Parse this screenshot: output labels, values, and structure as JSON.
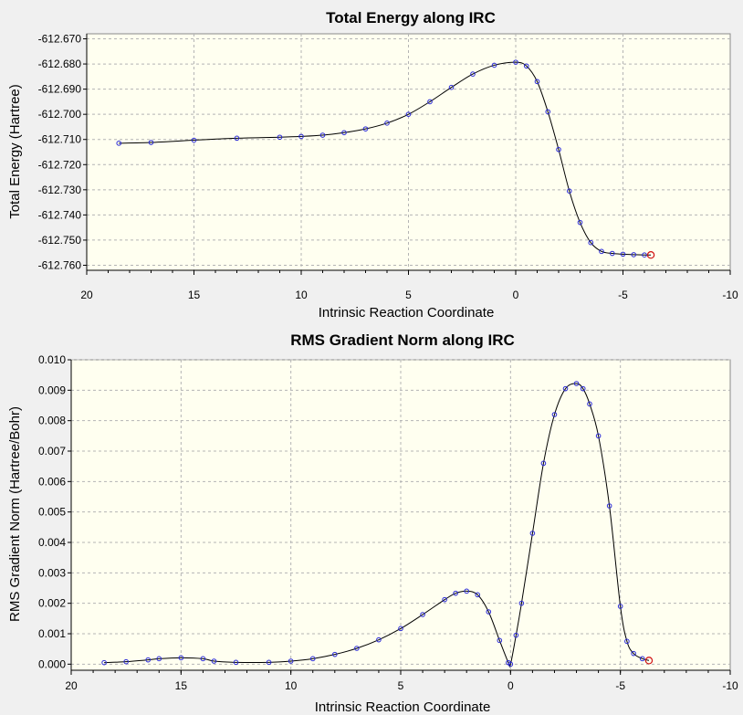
{
  "chart_data": [
    {
      "type": "scatter",
      "title": "Total Energy along IRC",
      "xlabel": "Intrinsic Reaction Coordinate",
      "ylabel": "Total Energy (Hartree)",
      "xlim": [
        20,
        -10
      ],
      "ylim": [
        -612.762,
        -612.668
      ],
      "x_ticks": [
        20,
        15,
        10,
        5,
        0,
        -5,
        -10
      ],
      "y_ticks": [
        -612.67,
        -612.68,
        -612.69,
        -612.7,
        -612.71,
        -612.72,
        -612.73,
        -612.74,
        -612.75,
        -612.76
      ],
      "x_tick_labels": [
        "20",
        "15",
        "10",
        "5",
        "0",
        "-5",
        "-10"
      ],
      "y_tick_labels": [
        "-612.670",
        "-612.680",
        "-612.690",
        "-612.700",
        "-612.710",
        "-612.720",
        "-612.730",
        "-612.740",
        "-612.750",
        "-612.760"
      ],
      "grid": true,
      "highlight_last_point": true,
      "curve_colors": {
        "line": "#000000",
        "marker": "#2a2ad6",
        "last_marker": "#d01010",
        "plot_bg": "#fffff0"
      },
      "points": [
        [
          18.5,
          -612.7115
        ],
        [
          17.0,
          -612.7112
        ],
        [
          15.0,
          -612.7103
        ],
        [
          13.0,
          -612.7095
        ],
        [
          11.0,
          -612.7091
        ],
        [
          10.0,
          -612.7088
        ],
        [
          9.0,
          -612.7083
        ],
        [
          8.0,
          -612.7073
        ],
        [
          7.0,
          -612.7058
        ],
        [
          6.0,
          -612.7035
        ],
        [
          5.0,
          -612.7
        ],
        [
          4.0,
          -612.695
        ],
        [
          3.0,
          -612.6893
        ],
        [
          2.0,
          -612.684
        ],
        [
          1.0,
          -612.6805
        ],
        [
          0.0,
          -612.6793
        ],
        [
          -0.5,
          -612.6808
        ],
        [
          -1.0,
          -612.687
        ],
        [
          -1.5,
          -612.699
        ],
        [
          -2.0,
          -612.714
        ],
        [
          -2.5,
          -612.7305
        ],
        [
          -3.0,
          -612.743
        ],
        [
          -3.5,
          -612.751
        ],
        [
          -4.0,
          -612.7545
        ],
        [
          -4.5,
          -612.7553
        ],
        [
          -5.0,
          -612.7556
        ],
        [
          -5.5,
          -612.7558
        ],
        [
          -6.0,
          -612.7559
        ],
        [
          -6.3,
          -612.7559
        ]
      ]
    },
    {
      "type": "scatter",
      "title": "RMS Gradient Norm along IRC",
      "xlabel": "Intrinsic Reaction Coordinate",
      "ylabel": "RMS Gradient Norm (Hartree/Bohr)",
      "xlim": [
        20,
        -10
      ],
      "ylim": [
        -0.0002,
        0.01
      ],
      "x_ticks": [
        20,
        15,
        10,
        5,
        0,
        -5,
        -10
      ],
      "y_ticks": [
        0.0,
        0.001,
        0.002,
        0.003,
        0.004,
        0.005,
        0.006,
        0.007,
        0.008,
        0.009,
        0.01
      ],
      "x_tick_labels": [
        "20",
        "15",
        "10",
        "5",
        "0",
        "-5",
        "-10"
      ],
      "y_tick_labels": [
        "0.000",
        "0.001",
        "0.002",
        "0.003",
        "0.004",
        "0.005",
        "0.006",
        "0.007",
        "0.008",
        "0.009",
        "0.010"
      ],
      "grid": true,
      "highlight_last_point": true,
      "curve_colors": {
        "line": "#000000",
        "marker": "#2a2ad6",
        "last_marker": "#d01010",
        "plot_bg": "#fffff0"
      },
      "points": [
        [
          18.5,
          5e-05
        ],
        [
          17.5,
          8e-05
        ],
        [
          16.5,
          0.00014
        ],
        [
          16.0,
          0.00018
        ],
        [
          15.0,
          0.00021
        ],
        [
          14.0,
          0.00018
        ],
        [
          13.5,
          0.0001
        ],
        [
          12.5,
          6e-05
        ],
        [
          11.0,
          6e-05
        ],
        [
          10.0,
          0.0001
        ],
        [
          9.0,
          0.00018
        ],
        [
          8.0,
          0.00032
        ],
        [
          7.0,
          0.00052
        ],
        [
          6.0,
          0.0008
        ],
        [
          5.0,
          0.00117
        ],
        [
          4.0,
          0.00163
        ],
        [
          3.0,
          0.00212
        ],
        [
          2.5,
          0.00233
        ],
        [
          2.0,
          0.0024
        ],
        [
          1.5,
          0.00228
        ],
        [
          1.0,
          0.00172
        ],
        [
          0.5,
          0.00078
        ],
        [
          0.1,
          5e-05
        ],
        [
          0.0,
          0.0
        ],
        [
          -0.25,
          0.00095
        ],
        [
          -0.5,
          0.002
        ],
        [
          -1.0,
          0.0043
        ],
        [
          -1.5,
          0.0066
        ],
        [
          -2.0,
          0.0082
        ],
        [
          -2.5,
          0.00905
        ],
        [
          -3.0,
          0.00922
        ],
        [
          -3.3,
          0.00905
        ],
        [
          -3.6,
          0.00855
        ],
        [
          -4.0,
          0.0075
        ],
        [
          -4.5,
          0.0052
        ],
        [
          -5.0,
          0.0019
        ],
        [
          -5.3,
          0.00075
        ],
        [
          -5.6,
          0.00035
        ],
        [
          -6.0,
          0.00018
        ],
        [
          -6.3,
          0.00012
        ]
      ]
    }
  ]
}
